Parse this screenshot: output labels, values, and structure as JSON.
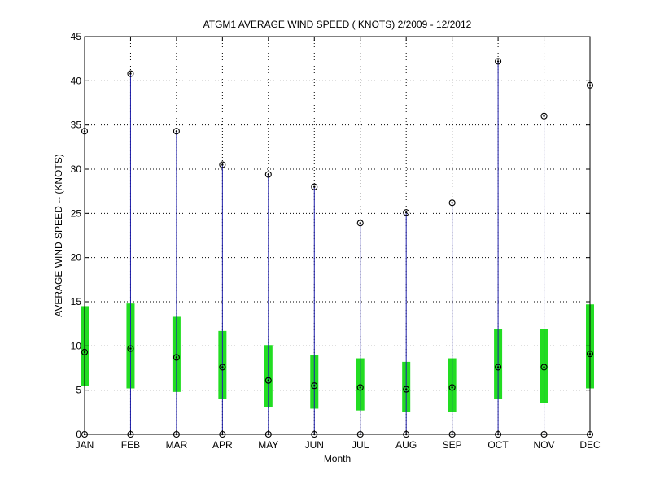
{
  "chart_data": {
    "type": "box",
    "title": "ATGM1  AVERAGE WIND SPEED ( KNOTS) 2/2009 - 12/2012",
    "xlabel": "Month",
    "ylabel": "AVERAGE WIND SPEED -- (KNOTS)",
    "ylim": [
      0,
      45
    ],
    "yticks": [
      0,
      5,
      10,
      15,
      20,
      25,
      30,
      35,
      40,
      45
    ],
    "grid": true,
    "categories": [
      "JAN",
      "FEB",
      "MAR",
      "APR",
      "MAY",
      "JUN",
      "JUL",
      "AUG",
      "SEP",
      "OCT",
      "NOV",
      "DEC"
    ],
    "series": [
      {
        "min": [
          0,
          0,
          0,
          0,
          0,
          0,
          0,
          0,
          0,
          0,
          0,
          0
        ]
      },
      {
        "q1": [
          5.5,
          5.2,
          4.8,
          4.0,
          3.1,
          2.9,
          2.7,
          2.5,
          2.5,
          4.0,
          3.5,
          5.2
        ]
      },
      {
        "median": [
          9.3,
          9.7,
          8.7,
          7.6,
          6.1,
          5.5,
          5.3,
          5.1,
          5.3,
          7.6,
          7.6,
          9.1
        ]
      },
      {
        "q3": [
          14.5,
          14.8,
          13.3,
          11.7,
          10.1,
          9.0,
          8.6,
          8.2,
          8.6,
          11.9,
          11.9,
          14.7
        ]
      },
      {
        "max": [
          34.3,
          40.8,
          34.3,
          30.5,
          29.4,
          28.0,
          23.9,
          25.1,
          26.2,
          42.2,
          36.0,
          39.5
        ]
      }
    ],
    "colors": {
      "whisker": "#1f1fa8",
      "box": "#22dd22",
      "marker": "#000000",
      "grid": "#000000"
    }
  }
}
